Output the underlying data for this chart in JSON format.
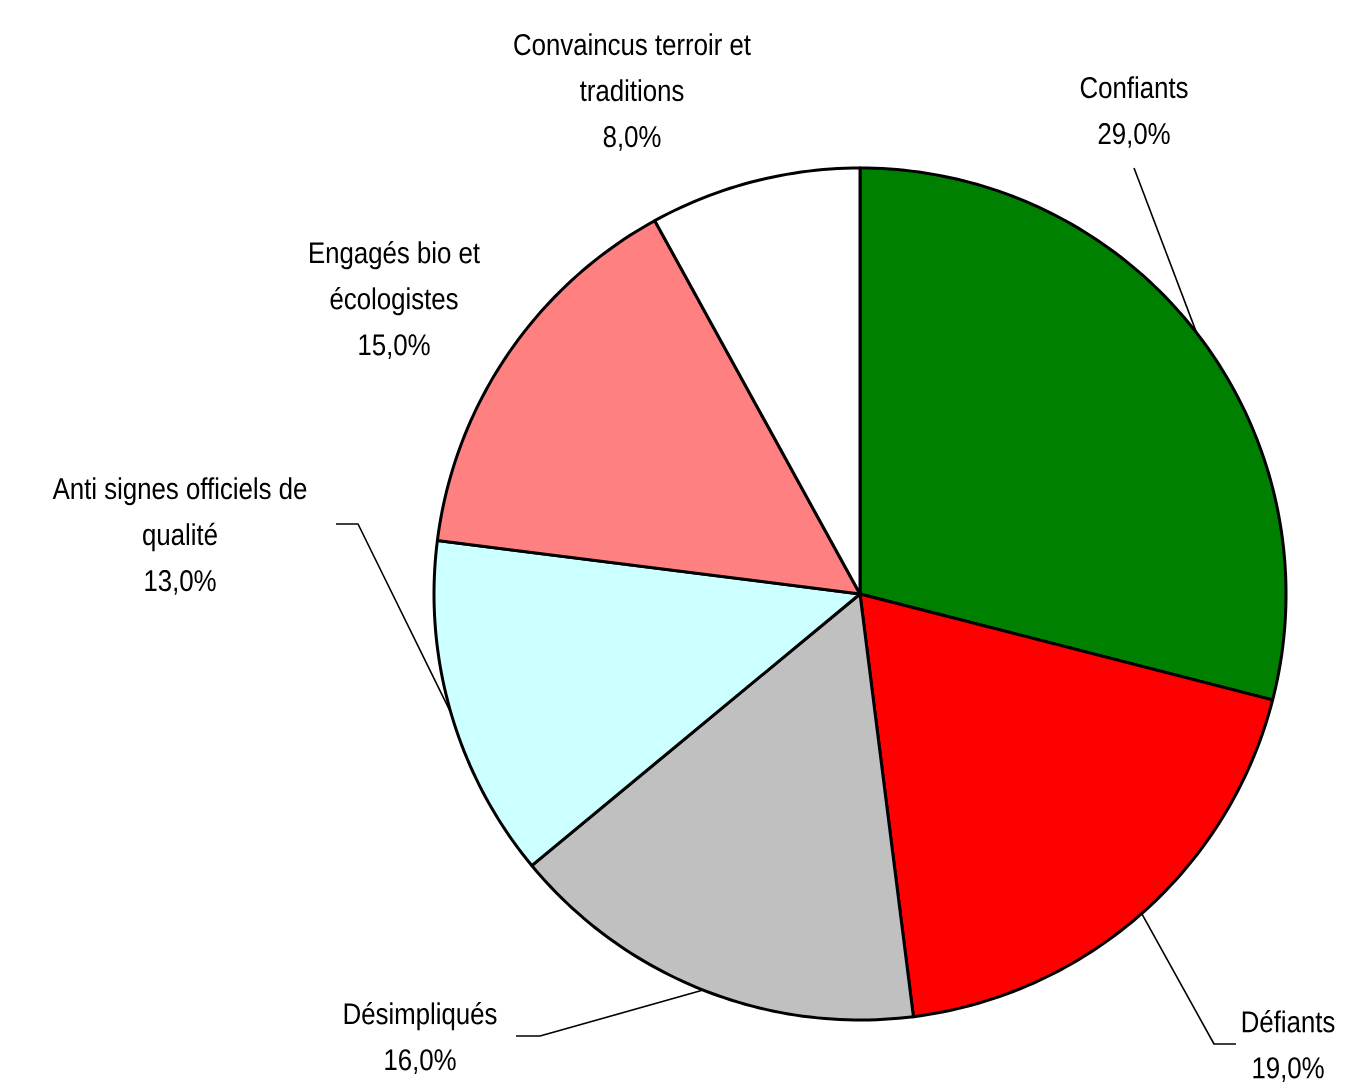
{
  "chart_data": {
    "type": "pie",
    "categories": [
      "Confiants",
      "Défiants",
      "Désimpliqués",
      "Anti signes officiels de qualité",
      "Engagés bio et écologistes",
      "Convaincus terroir et traditions"
    ],
    "values": [
      29,
      19,
      16,
      13,
      15,
      8
    ],
    "colors": [
      "#008000",
      "#ff0000",
      "#c0c0c0",
      "#ccffff",
      "#ff8080",
      "#ffffff"
    ],
    "value_labels": [
      "29,0%",
      "19,0%",
      "16,0%",
      "13,0%",
      "15,0%",
      "8,0%"
    ]
  }
}
